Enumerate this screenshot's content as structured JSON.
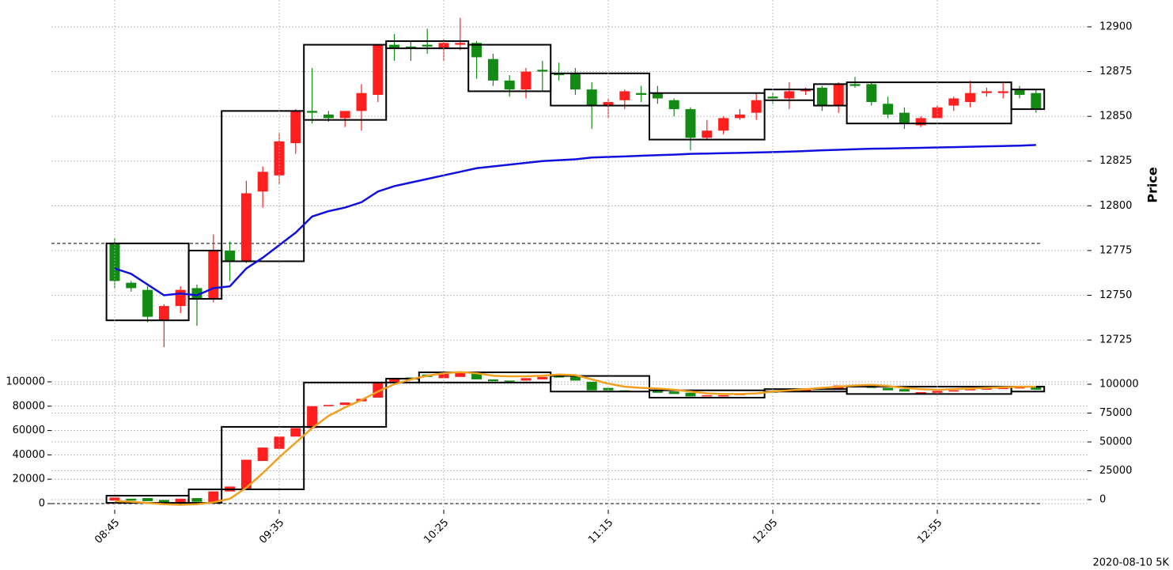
{
  "chart_data": [
    {
      "type": "candlestick",
      "ylabel": "Price",
      "up_color": "#ff1f1f",
      "down_color": "#138a13",
      "open": [
        12779,
        12757,
        12753,
        12736,
        12744,
        12754,
        12748,
        12775,
        12769,
        12808,
        12817,
        12835,
        12853,
        12851,
        12849,
        12853,
        12862,
        12890,
        12889,
        12890,
        12888,
        12890,
        12891,
        12882,
        12870,
        12865,
        12876,
        12874,
        12874,
        12865,
        12856,
        12859,
        12863,
        12863,
        12859,
        12854,
        12838,
        12842,
        12849,
        12852,
        12861,
        12860,
        12864,
        12866,
        12856,
        12868,
        12868,
        12857,
        12852,
        12845,
        12849,
        12856,
        12858,
        12863,
        12863,
        12865,
        12863
      ],
      "high": [
        12782,
        12758,
        12755,
        12745,
        12755,
        12756,
        12784,
        12780,
        12814,
        12822,
        12841,
        12854,
        12877,
        12853,
        12853,
        12868,
        12890,
        12896,
        12892,
        12899,
        12893,
        12905,
        12892,
        12885,
        12873,
        12877,
        12881,
        12880,
        12877,
        12869,
        12860,
        12865,
        12867,
        12867,
        12860,
        12855,
        12848,
        12850,
        12854,
        12863,
        12863,
        12869,
        12866,
        12867,
        12869,
        12872,
        12869,
        12861,
        12855,
        12850,
        12856,
        12861,
        12870,
        12866,
        12869,
        12867,
        12865
      ],
      "low": [
        12754,
        12752,
        12735,
        12721,
        12740,
        12733,
        12746,
        12758,
        12768,
        12799,
        12812,
        12829,
        12846,
        12847,
        12844,
        12842,
        12858,
        12881,
        12881,
        12885,
        12881,
        12887,
        12871,
        12867,
        12861,
        12860,
        12864,
        12870,
        12862,
        12843,
        12849,
        12854,
        12858,
        12857,
        12850,
        12831,
        12837,
        12840,
        12848,
        12848,
        12857,
        12854,
        12862,
        12853,
        12852,
        12866,
        12856,
        12849,
        12843,
        12844,
        12849,
        12853,
        12855,
        12861,
        12860,
        12860,
        12852
      ],
      "close": [
        12758,
        12754,
        12738,
        12744,
        12753,
        12748,
        12775,
        12769,
        12807,
        12819,
        12836,
        12853,
        12852,
        12849,
        12853,
        12863,
        12890,
        12888,
        12888,
        12889,
        12891,
        12891,
        12883,
        12870,
        12865,
        12875,
        12875,
        12873,
        12865,
        12856,
        12858,
        12864,
        12862,
        12860,
        12854,
        12838,
        12842,
        12849,
        12851,
        12859,
        12860,
        12864,
        12865,
        12856,
        12868,
        12867,
        12858,
        12851,
        12846,
        12849,
        12855,
        12860,
        12863,
        12864,
        12864,
        12862,
        12854
      ],
      "ma": {
        "color": "#1010dd",
        "values": [
          12765,
          12762,
          12756,
          12750,
          12751,
          12750,
          12754,
          12755,
          12765,
          12771,
          12778,
          12785,
          12794,
          12797,
          12799,
          12802,
          12808,
          12811,
          12813,
          12815,
          12817,
          12819,
          12821,
          12822,
          12823,
          12824,
          12825,
          12825.5,
          12826,
          12827,
          12827.3,
          12827.6,
          12828,
          12828.3,
          12828.6,
          12829,
          12829.2,
          12829.4,
          12829.6,
          12829.8,
          12830,
          12830.3,
          12830.6,
          12831,
          12831.3,
          12831.6,
          12831.9,
          12832,
          12832.2,
          12832.4,
          12832.6,
          12832.8,
          12833,
          12833.2,
          12833.4,
          12833.6,
          12834
        ]
      },
      "boxes": [
        {
          "start": 0,
          "end": 4,
          "high": 12779,
          "low": 12736
        },
        {
          "start": 5,
          "end": 6,
          "high": 12775,
          "low": 12748
        },
        {
          "start": 7,
          "end": 11,
          "high": 12853,
          "low": 12769
        },
        {
          "start": 12,
          "end": 16,
          "high": 12890,
          "low": 12848
        },
        {
          "start": 17,
          "end": 21,
          "high": 12892,
          "low": 12888
        },
        {
          "start": 22,
          "end": 26,
          "high": 12890,
          "low": 12864
        },
        {
          "start": 27,
          "end": 32,
          "high": 12874,
          "low": 12856
        },
        {
          "start": 33,
          "end": 39,
          "high": 12863,
          "low": 12837
        },
        {
          "start": 40,
          "end": 42,
          "high": 12865,
          "low": 12859
        },
        {
          "start": 43,
          "end": 44,
          "high": 12868,
          "low": 12856
        },
        {
          "start": 45,
          "end": 54,
          "high": 12869,
          "low": 12846
        },
        {
          "start": 55,
          "end": 56,
          "high": 12865,
          "low": 12854
        }
      ],
      "hline": 12779,
      "ylim": [
        12714,
        12915
      ],
      "yticks": [
        12725,
        12750,
        12775,
        12800,
        12825,
        12850,
        12875,
        12900
      ],
      "grid": true
    },
    {
      "type": "candlestick",
      "up_color": "#ff1f1f",
      "down_color": "#138a13",
      "categories": [
        "08:45",
        null,
        null,
        null,
        null,
        null,
        null,
        null,
        null,
        null,
        "09:35",
        null,
        null,
        null,
        null,
        null,
        null,
        null,
        null,
        null,
        "10:25",
        null,
        null,
        null,
        null,
        null,
        null,
        null,
        null,
        null,
        "11:15",
        null,
        null,
        null,
        null,
        null,
        null,
        null,
        null,
        null,
        "12:05",
        null,
        null,
        null,
        null,
        null,
        null,
        null,
        null,
        null,
        "12:55",
        null,
        null,
        null,
        null,
        null,
        null
      ],
      "open": [
        2500,
        4000,
        4500,
        3000,
        1000,
        4500,
        1000,
        10000,
        12000,
        35000,
        45000,
        55000,
        62000,
        80000,
        81000,
        84000,
        87000,
        100000,
        103500,
        106000,
        103000,
        104000,
        107000,
        102000,
        101000,
        101000,
        102000,
        104500,
        105000,
        100000,
        95000,
        93000,
        92500,
        93000,
        92000,
        91000,
        88000,
        88000,
        89000,
        90000,
        92000,
        92500,
        93000,
        94500,
        94000,
        96800,
        97000,
        95000,
        94000,
        91000,
        91000,
        92000,
        93000,
        94000,
        94500,
        95000,
        96500
      ],
      "close": [
        5000,
        2500,
        2000,
        1000,
        4000,
        1500,
        10000,
        14000,
        36000,
        46000,
        55000,
        62000,
        80000,
        81000,
        83000,
        86000,
        100000,
        103000,
        103000,
        104000,
        107000,
        108000,
        102000,
        100500,
        100500,
        103000,
        104000,
        104000,
        101000,
        93000,
        93000,
        92500,
        92000,
        91000,
        90000,
        88000,
        89000,
        89000,
        90000,
        91000,
        91500,
        93000,
        93500,
        94000,
        97000,
        96500,
        95000,
        93000,
        92000,
        91500,
        92500,
        93000,
        94000,
        94500,
        95000,
        95500,
        93500
      ],
      "ma": {
        "color": "#f0a020",
        "values": [
          2000,
          1500,
          500,
          -500,
          -1000,
          -500,
          1000,
          4000,
          13000,
          25000,
          38000,
          50000,
          62000,
          72000,
          79000,
          85000,
          92000,
          98000,
          102000,
          105000,
          107000,
          108000,
          107000,
          105000,
          104500,
          104500,
          105000,
          106000,
          105500,
          102000,
          98500,
          96000,
          95000,
          94500,
          93500,
          92000,
          90500,
          90000,
          90000,
          90500,
          92000,
          93000,
          94000,
          95000,
          96000,
          97000,
          97500,
          96500,
          95000,
          94000,
          93500,
          94000,
          94500,
          95000,
          95500,
          96000,
          96000
        ]
      },
      "boxes": [
        {
          "start": 0,
          "end": 4,
          "high": 6500,
          "low": 600
        },
        {
          "start": 5,
          "end": 6,
          "high": 11700,
          "low": 600
        },
        {
          "start": 7,
          "end": 11,
          "high": 63000,
          "low": 11700
        },
        {
          "start": 12,
          "end": 16,
          "high": 99400,
          "low": 63000
        },
        {
          "start": 17,
          "end": 18,
          "high": 102600,
          "low": 99400
        },
        {
          "start": 19,
          "end": 26,
          "high": 107800,
          "low": 99400
        },
        {
          "start": 27,
          "end": 32,
          "high": 104800,
          "low": 92000
        },
        {
          "start": 33,
          "end": 39,
          "high": 93000,
          "low": 87000
        },
        {
          "start": 40,
          "end": 44,
          "high": 94000,
          "low": 92000
        },
        {
          "start": 45,
          "end": 54,
          "high": 96000,
          "low": 90000
        },
        {
          "start": 55,
          "end": 56,
          "high": 96000,
          "low": 92000
        }
      ],
      "hline": 0,
      "ylim": [
        -5200,
        114900
      ],
      "yticks": [
        0,
        20000,
        40000,
        60000,
        80000,
        100000
      ],
      "y2lim": [
        -8900,
        117800
      ],
      "y2ticks": [
        0,
        25000,
        50000,
        75000,
        100000
      ],
      "grid": true
    }
  ],
  "footer": "2020-08-10 5K"
}
